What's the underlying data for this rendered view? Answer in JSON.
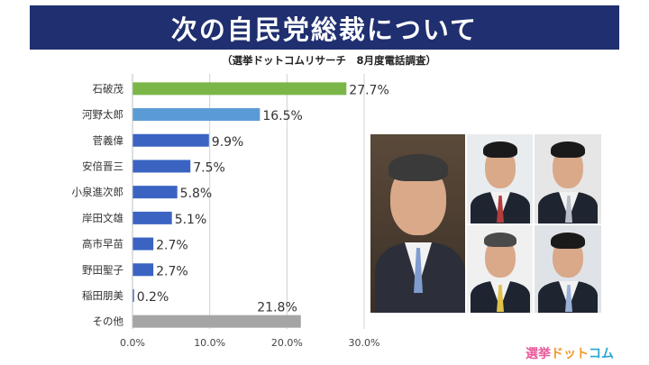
{
  "header": {
    "title": "次の自民党総裁について",
    "subtitle": "（選挙ドットコムリサーチ　8月度電話調査）"
  },
  "chart_data": {
    "type": "bar",
    "orientation": "horizontal",
    "title": "次の自民党総裁について",
    "subtitle": "（選挙ドットコムリサーチ　8月度電話調査）",
    "categories": [
      "石破茂",
      "河野太郎",
      "菅義偉",
      "安倍晋三",
      "小泉進次郎",
      "岸田文雄",
      "高市早苗",
      "野田聖子",
      "稲田朋美",
      "その他"
    ],
    "values": [
      27.7,
      16.5,
      9.9,
      7.5,
      5.8,
      5.1,
      2.7,
      2.7,
      0.2,
      21.8
    ],
    "value_labels": [
      "27.7%",
      "16.5%",
      "9.9%",
      "7.5%",
      "5.8%",
      "5.1%",
      "2.7%",
      "2.7%",
      "0.2%",
      "21.8%"
    ],
    "bar_colors": [
      "#7ab648",
      "#5b9bd5",
      "#3a63c2",
      "#3a63c2",
      "#3a63c2",
      "#3a63c2",
      "#3a63c2",
      "#3a63c2",
      "#3a63c2",
      "#a5a5a5"
    ],
    "xlim": [
      0,
      30
    ],
    "xticks": [
      0,
      10,
      20,
      30
    ],
    "xtick_labels": [
      "0.0%",
      "10.0%",
      "20.0%",
      "30.0%"
    ],
    "grid": true,
    "xlabel": "",
    "ylabel": ""
  },
  "photo_panel": {
    "description_free": true,
    "tie_colors": [
      "#7f9ccf",
      "#b43c3c",
      "#b8bec8",
      "#e0c24a",
      "#9ab0d8"
    ]
  },
  "logo": {
    "part_a": "選挙",
    "part_b": "ドット",
    "part_c": "コム"
  },
  "colors": {
    "header_bg": "#1f2f6f",
    "header_text": "#ffffff"
  }
}
